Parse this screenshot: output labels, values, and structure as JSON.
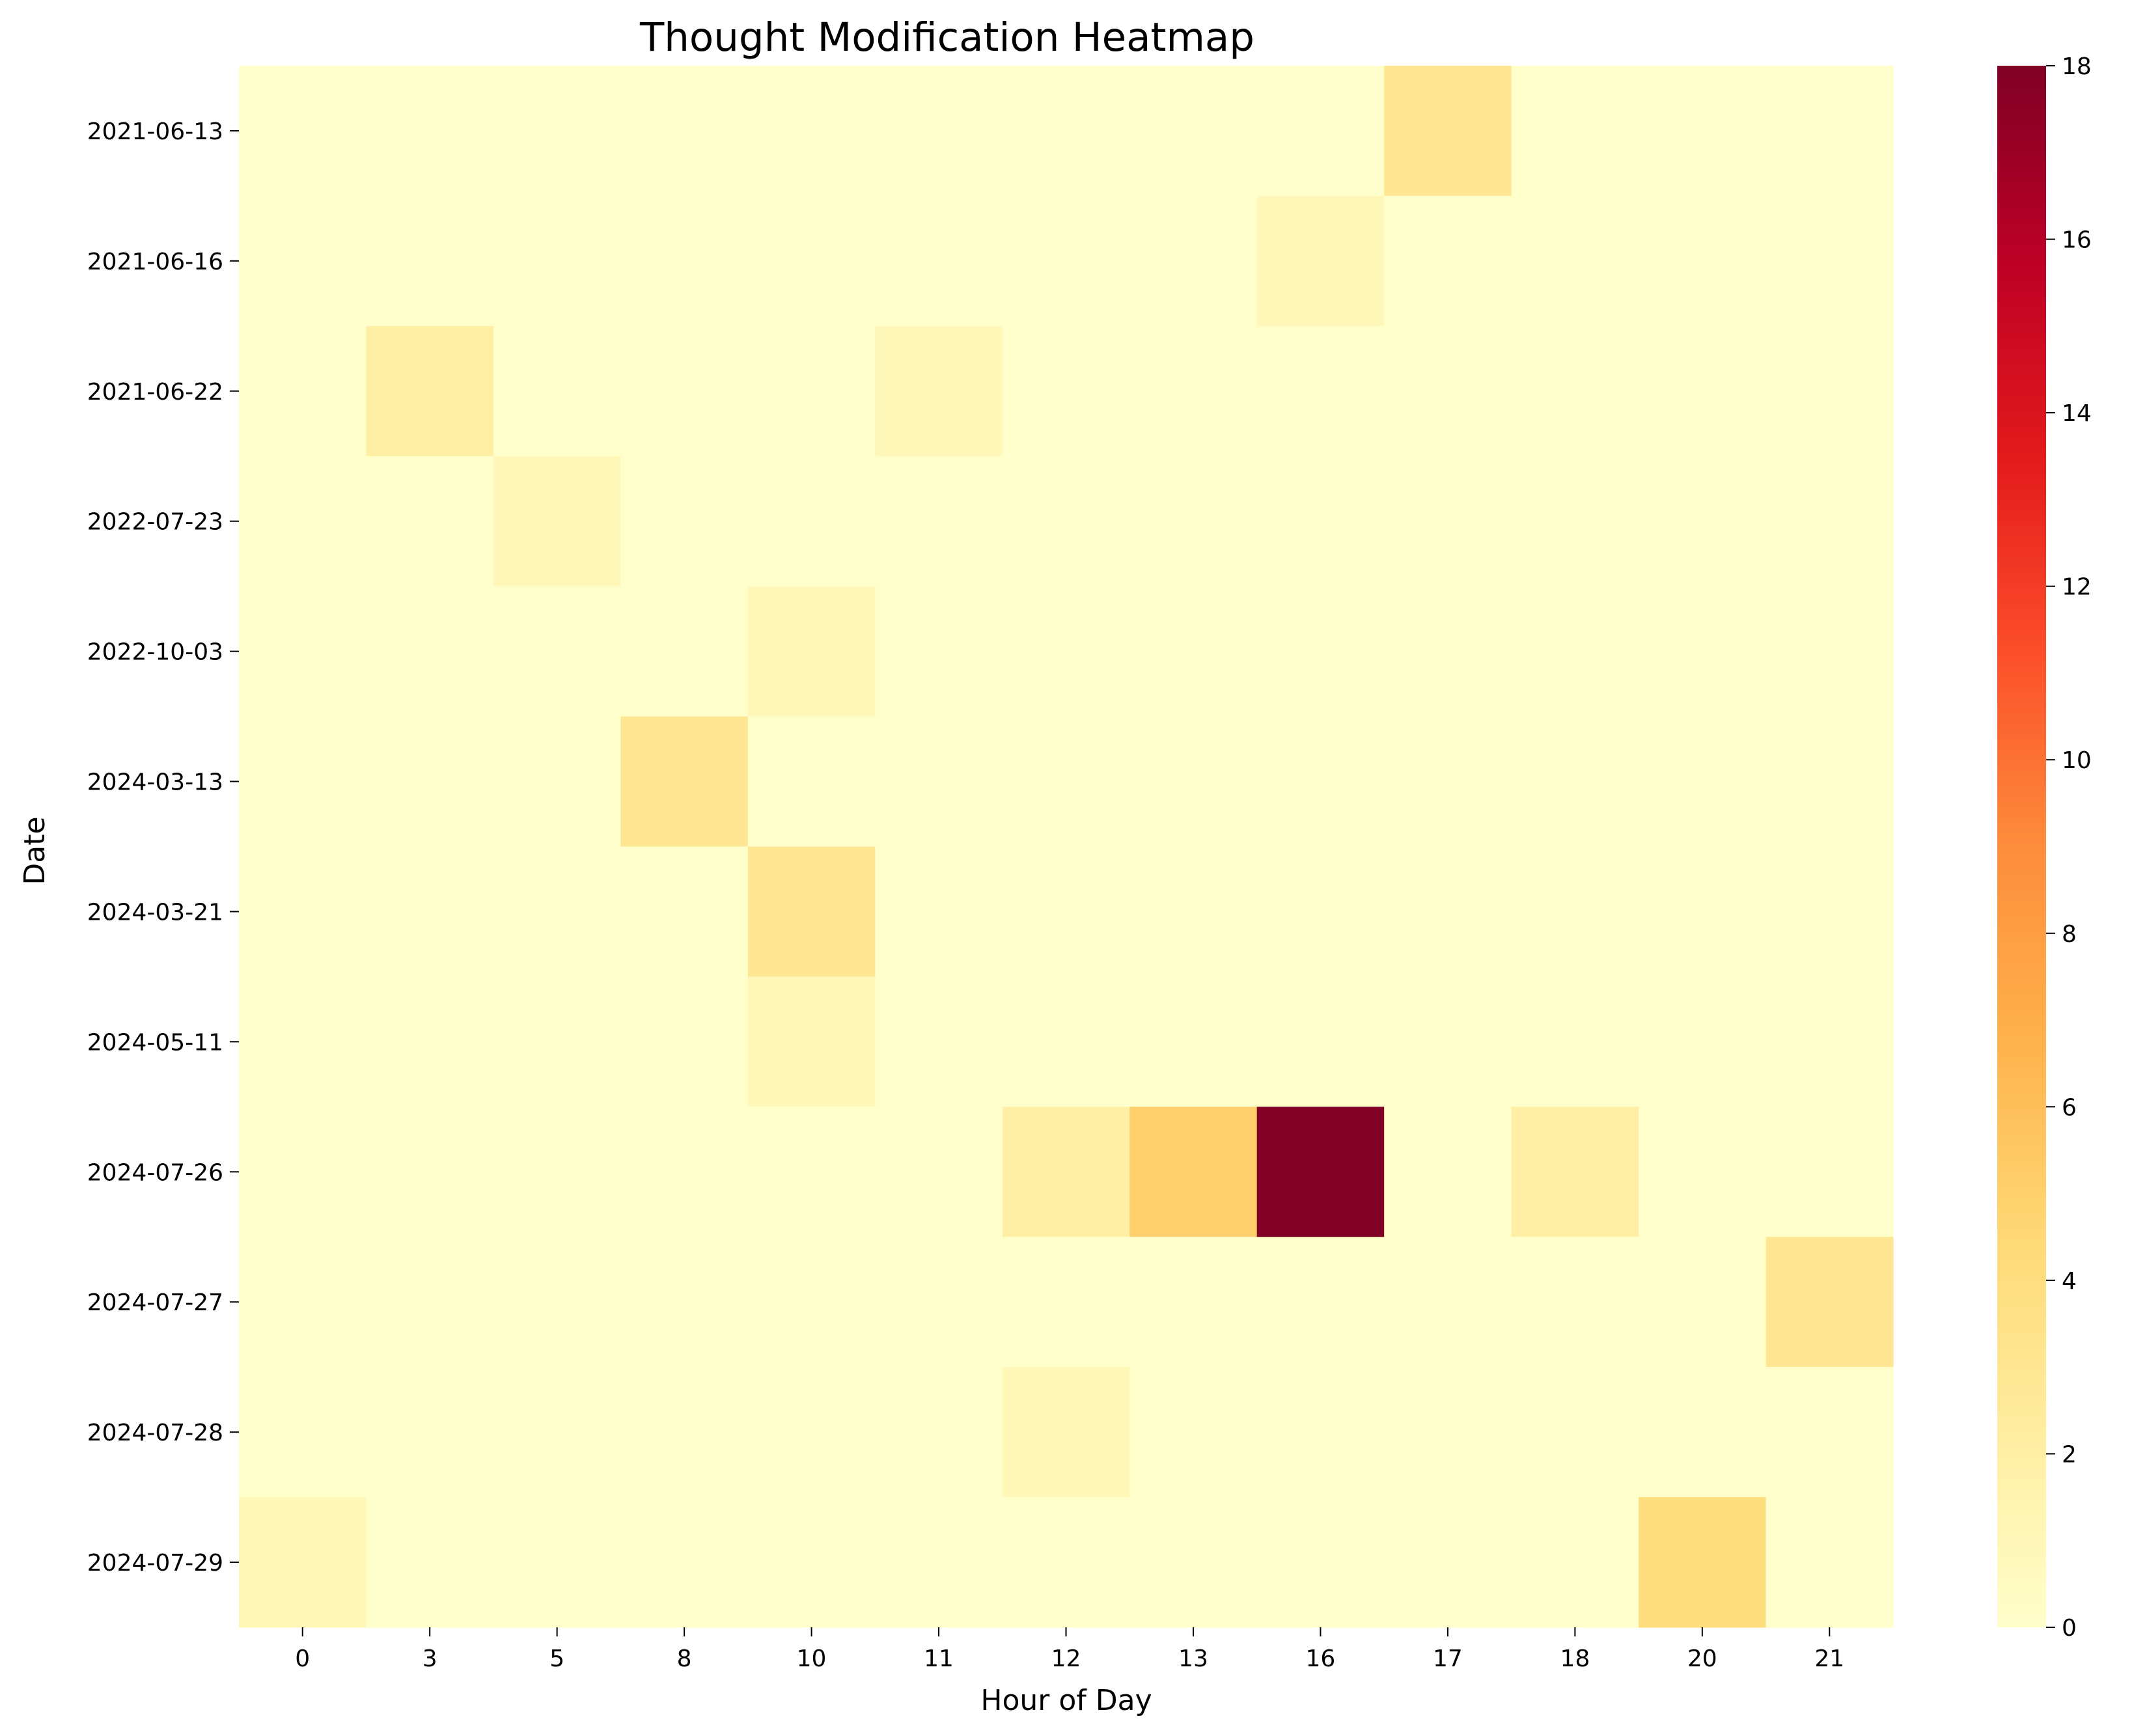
{
  "chart_data": {
    "type": "heatmap",
    "title": "Thought Modification Heatmap",
    "xlabel": "Hour of Day",
    "ylabel": "Date",
    "x_categories": [
      "0",
      "3",
      "5",
      "8",
      "10",
      "11",
      "12",
      "13",
      "16",
      "17",
      "18",
      "20",
      "21"
    ],
    "y_categories": [
      "2021-06-13",
      "2021-06-16",
      "2021-06-22",
      "2022-07-23",
      "2022-10-03",
      "2024-03-13",
      "2024-03-21",
      "2024-05-11",
      "2024-07-26",
      "2024-07-27",
      "2024-07-28",
      "2024-07-29"
    ],
    "values": [
      [
        0,
        0,
        0,
        0,
        0,
        0,
        0,
        0,
        0,
        3,
        0,
        0,
        0
      ],
      [
        0,
        0,
        0,
        0,
        0,
        0,
        0,
        0,
        1,
        0,
        0,
        0,
        0
      ],
      [
        0,
        2,
        0,
        0,
        0,
        1,
        0,
        0,
        0,
        0,
        0,
        0,
        0
      ],
      [
        0,
        0,
        1,
        0,
        0,
        0,
        0,
        0,
        0,
        0,
        0,
        0,
        0
      ],
      [
        0,
        0,
        0,
        0,
        1,
        0,
        0,
        0,
        0,
        0,
        0,
        0,
        0
      ],
      [
        0,
        0,
        0,
        3,
        0,
        0,
        0,
        0,
        0,
        0,
        0,
        0,
        0
      ],
      [
        0,
        0,
        0,
        0,
        3,
        0,
        0,
        0,
        0,
        0,
        0,
        0,
        0
      ],
      [
        0,
        0,
        0,
        0,
        1,
        0,
        0,
        0,
        0,
        0,
        0,
        0,
        0
      ],
      [
        0,
        0,
        0,
        0,
        0,
        0,
        2,
        5,
        18,
        0,
        2,
        0,
        0
      ],
      [
        0,
        0,
        0,
        0,
        0,
        0,
        0,
        0,
        0,
        0,
        0,
        0,
        3
      ],
      [
        0,
        0,
        0,
        0,
        0,
        0,
        1,
        0,
        0,
        0,
        0,
        0,
        0
      ],
      [
        1,
        0,
        0,
        0,
        0,
        0,
        0,
        0,
        0,
        0,
        0,
        4,
        0
      ]
    ],
    "colorbar": {
      "min": 0,
      "max": 18,
      "ticks": [
        0,
        2,
        4,
        6,
        8,
        10,
        12,
        14,
        16,
        18
      ],
      "colormap": "YlOrRd",
      "stops": [
        "#ffffcc",
        "#ffeda0",
        "#fed976",
        "#feb24c",
        "#fd8d3c",
        "#fc4e2a",
        "#e31a1c",
        "#bd0026",
        "#800026"
      ]
    },
    "grid": false
  }
}
